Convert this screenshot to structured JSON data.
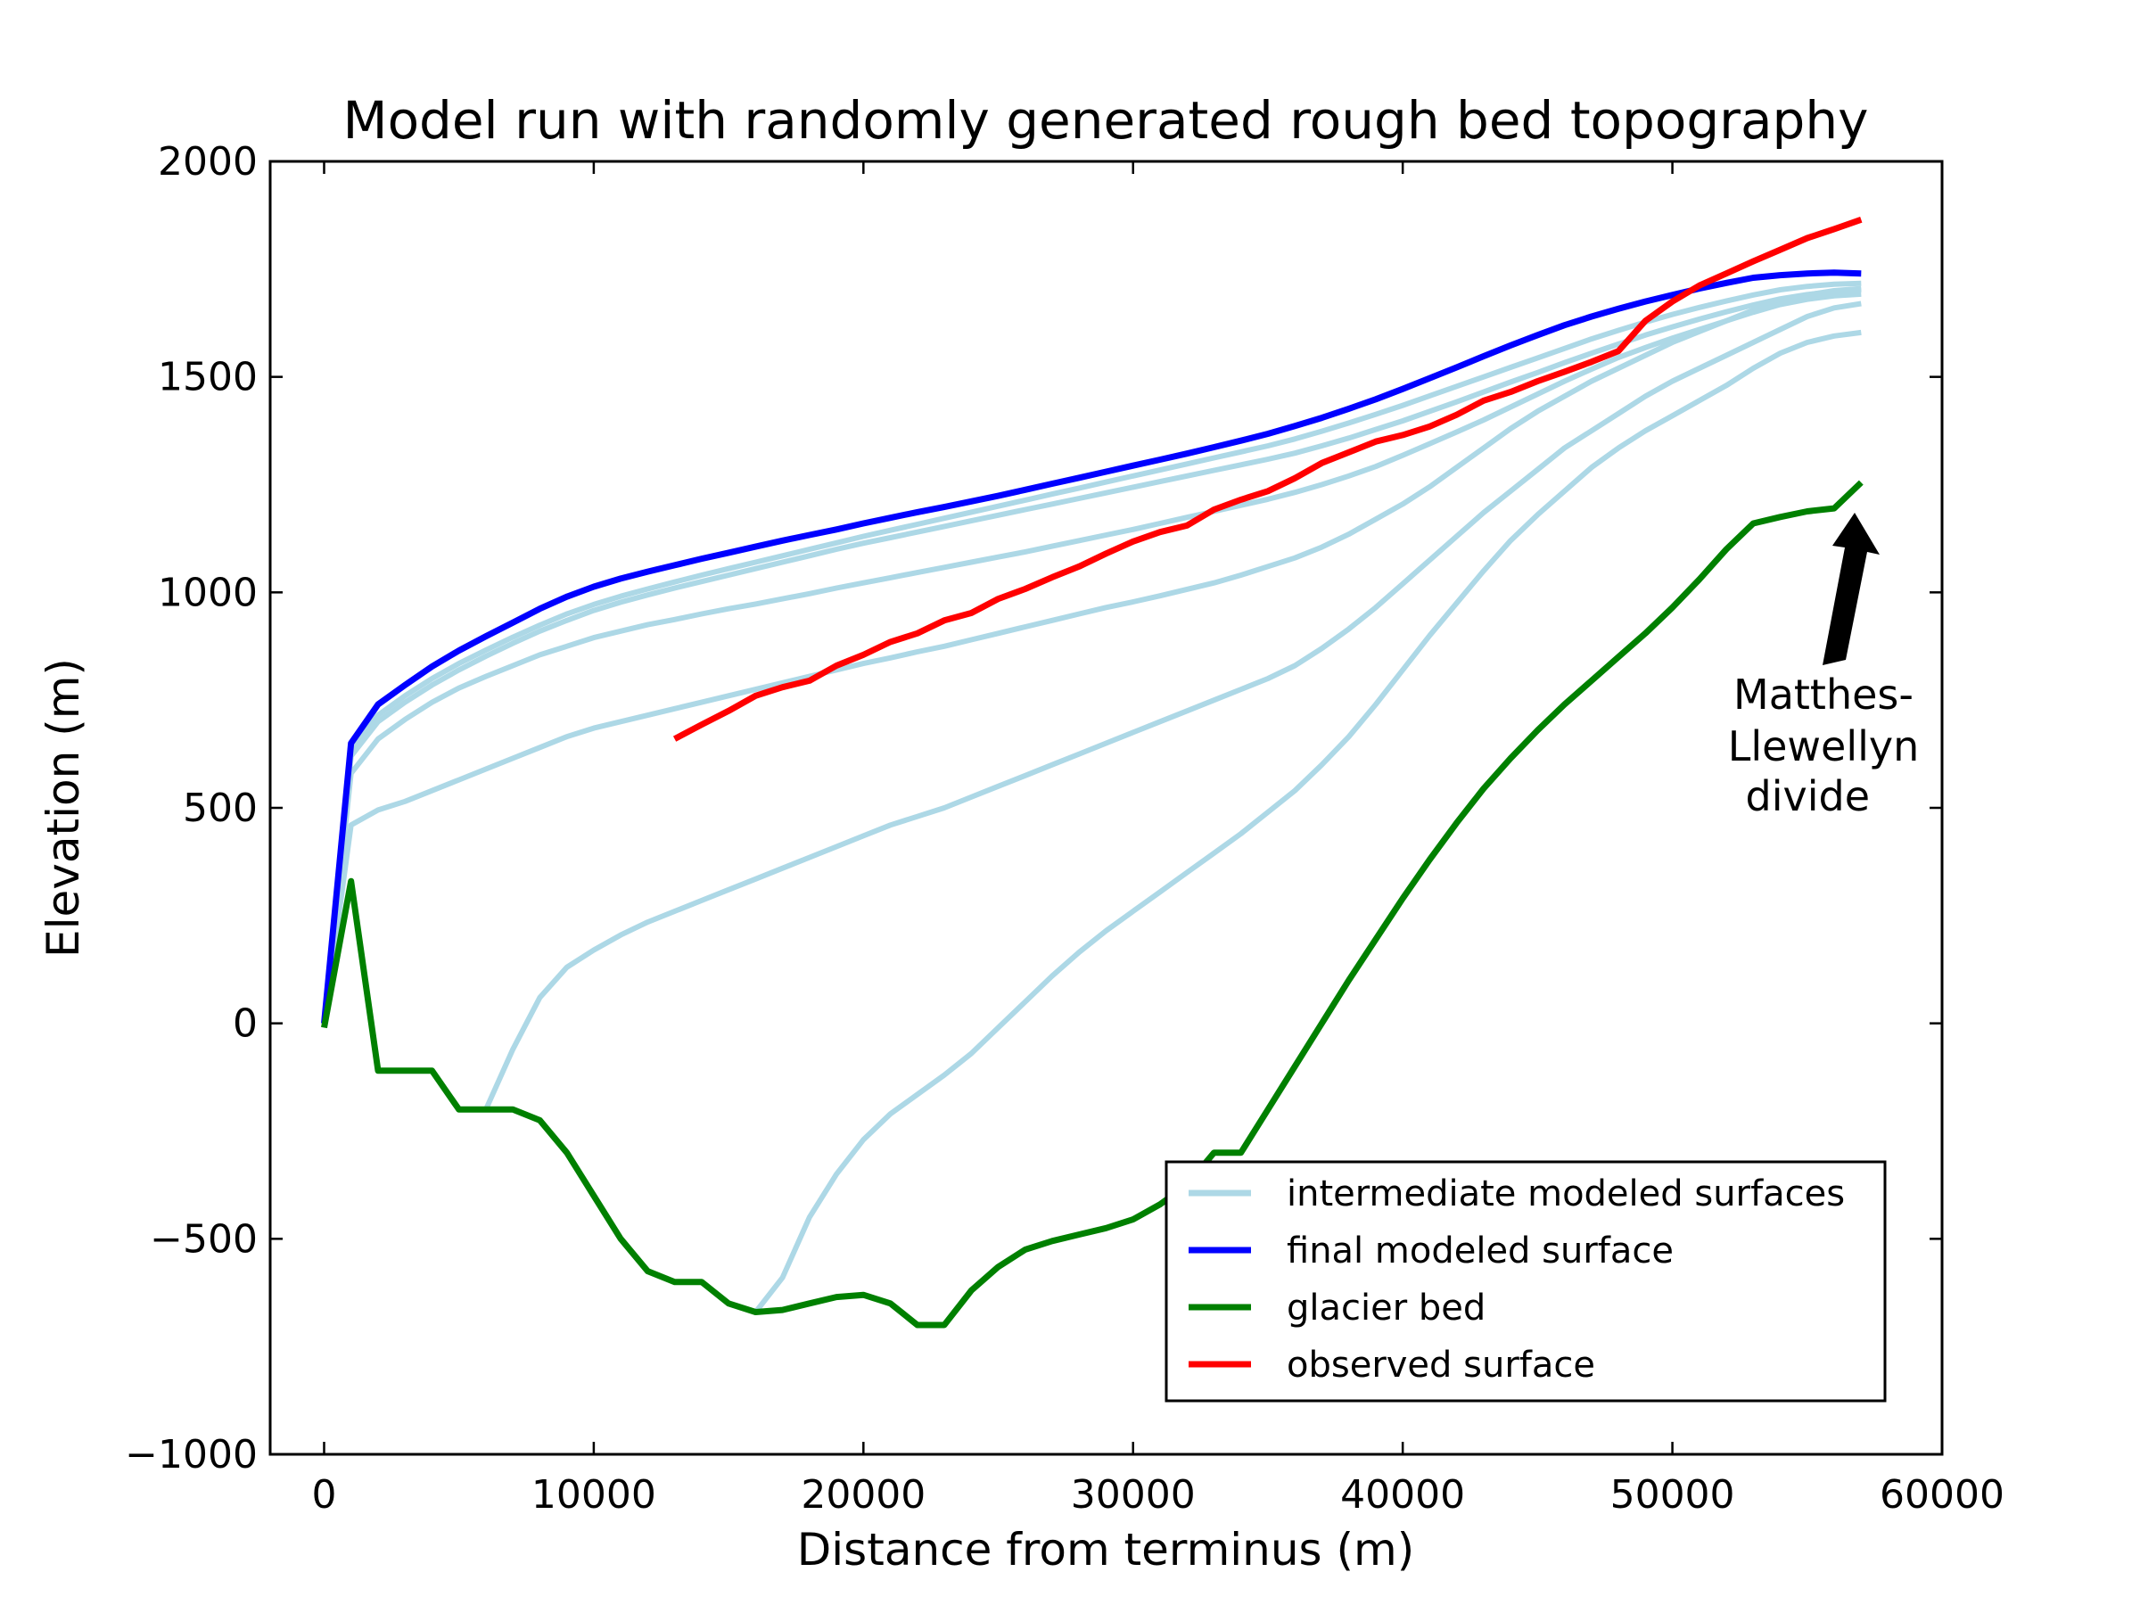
{
  "chart_data": {
    "type": "line",
    "title": "Model run with randomly generated rough bed topography",
    "xlabel": "Distance from terminus (m)",
    "ylabel": "Elevation (m)",
    "xlim": [
      -2000,
      60000
    ],
    "ylim": [
      -1000,
      2000
    ],
    "xticks": [
      0,
      10000,
      20000,
      30000,
      40000,
      50000,
      60000
    ],
    "yticks": [
      -1000,
      -500,
      0,
      500,
      1000,
      1500,
      2000
    ],
    "xtick_labels": [
      "0",
      "10000",
      "20000",
      "30000",
      "40000",
      "50000",
      "60000"
    ],
    "ytick_labels": [
      "−1000",
      "−500",
      "0",
      "500",
      "1000",
      "1500",
      "2000"
    ],
    "grid": false,
    "legend_position": "lower-right",
    "legend": [
      {
        "label": "intermediate modeled surfaces",
        "color": "#add8e6"
      },
      {
        "label": "final modeled surface",
        "color": "#0000ff"
      },
      {
        "label": "glacier bed",
        "color": "#008000"
      },
      {
        "label": "observed surface",
        "color": "#ff0000"
      }
    ],
    "annotation": {
      "lines": [
        "Matthes-",
        "Llewellyn",
        " divide"
      ],
      "points_to": [
        56800,
        1200
      ]
    },
    "series": [
      {
        "role": "intermediate",
        "color": "#add8e6",
        "x": [
          6000,
          7000,
          8000,
          9000,
          10000,
          11000,
          12000,
          13000,
          14000,
          15000,
          16000,
          17000,
          18000,
          19000,
          20000,
          21000,
          22000,
          23000,
          24000,
          25000,
          26000,
          27000,
          28000,
          29000,
          30000,
          31000,
          32000,
          33000,
          34000,
          35000,
          36000,
          37000,
          38000,
          39000,
          40000,
          41000,
          42000,
          43000,
          44000,
          45000,
          46000,
          47000,
          48000,
          49000,
          50000,
          51000,
          52000,
          53000,
          54000,
          55000,
          56000,
          57000
        ],
        "y": [
          -200,
          -60,
          60,
          130,
          170,
          205,
          235,
          260,
          285,
          310,
          335,
          360,
          385,
          410,
          435,
          460,
          480,
          500,
          525,
          550,
          575,
          600,
          625,
          650,
          675,
          700,
          725,
          750,
          775,
          800,
          830,
          870,
          915,
          965,
          1020,
          1075,
          1130,
          1185,
          1235,
          1285,
          1335,
          1375,
          1415,
          1455,
          1490,
          1520,
          1550,
          1580,
          1610,
          1640,
          1660,
          1670
        ]
      },
      {
        "role": "intermediate",
        "color": "#add8e6",
        "x": [
          16000,
          17000,
          18000,
          19000,
          20000,
          21000,
          22000,
          23000,
          24000,
          25000,
          26000,
          27000,
          28000,
          29000,
          30000,
          31000,
          32000,
          33000,
          34000,
          35000,
          36000,
          37000,
          38000,
          39000,
          40000,
          41000,
          42000,
          43000,
          44000,
          45000,
          46000,
          47000,
          48000,
          49000,
          50000,
          51000,
          52000,
          53000,
          54000,
          55000,
          56000,
          57000
        ],
        "y": [
          -670,
          -590,
          -450,
          -350,
          -270,
          -210,
          -165,
          -120,
          -70,
          -10,
          50,
          110,
          165,
          215,
          260,
          305,
          350,
          395,
          440,
          490,
          540,
          600,
          665,
          740,
          820,
          900,
          975,
          1050,
          1120,
          1180,
          1235,
          1290,
          1335,
          1375,
          1410,
          1445,
          1480,
          1520,
          1555,
          1580,
          1595,
          1603
        ]
      },
      {
        "role": "intermediate",
        "color": "#add8e6",
        "x": [
          0,
          1000,
          2000,
          3000,
          4000,
          5000,
          6000,
          7000,
          8000,
          9000,
          10000,
          11000,
          12000,
          13000,
          14000,
          15000,
          16000,
          17000,
          18000,
          19000,
          20000,
          21000,
          22000,
          23000,
          24000,
          25000,
          26000,
          27000,
          28000,
          29000,
          30000,
          31000,
          32000,
          33000,
          34000,
          35000,
          36000,
          37000,
          38000,
          39000,
          40000,
          41000,
          42000,
          43000,
          44000,
          45000,
          46000,
          47000,
          48000,
          49000,
          50000,
          51000,
          52000,
          53000,
          54000,
          55000,
          56000,
          57000
        ],
        "y": [
          0,
          460,
          495,
          515,
          540,
          565,
          590,
          615,
          640,
          665,
          685,
          700,
          715,
          730,
          745,
          760,
          775,
          790,
          805,
          820,
          835,
          848,
          862,
          875,
          890,
          905,
          920,
          935,
          950,
          965,
          978,
          992,
          1007,
          1022,
          1040,
          1060,
          1080,
          1105,
          1135,
          1170,
          1205,
          1245,
          1290,
          1335,
          1380,
          1420,
          1455,
          1490,
          1520,
          1550,
          1580,
          1605,
          1630,
          1655,
          1675,
          1690,
          1700,
          1705
        ]
      },
      {
        "role": "intermediate",
        "color": "#add8e6",
        "x": [
          0,
          1000,
          2000,
          3000,
          4000,
          5000,
          6000,
          7000,
          8000,
          9000,
          10000,
          11000,
          12000,
          13000,
          14000,
          15000,
          16000,
          17000,
          18000,
          19000,
          20000,
          21000,
          22000,
          23000,
          24000,
          25000,
          26000,
          27000,
          28000,
          29000,
          30000,
          31000,
          32000,
          33000,
          34000,
          35000,
          36000,
          37000,
          38000,
          39000,
          40000,
          41000,
          42000,
          43000,
          44000,
          45000,
          46000,
          47000,
          48000,
          49000,
          50000,
          51000,
          52000,
          53000,
          54000,
          55000,
          56000,
          57000
        ],
        "y": [
          0,
          580,
          660,
          705,
          745,
          778,
          805,
          830,
          855,
          875,
          895,
          910,
          925,
          937,
          950,
          962,
          973,
          985,
          997,
          1010,
          1022,
          1034,
          1046,
          1058,
          1070,
          1082,
          1094,
          1107,
          1120,
          1133,
          1146,
          1160,
          1174,
          1188,
          1202,
          1216,
          1232,
          1250,
          1270,
          1292,
          1318,
          1345,
          1372,
          1400,
          1430,
          1460,
          1490,
          1518,
          1545,
          1568,
          1590,
          1610,
          1630,
          1650,
          1668,
          1680,
          1688,
          1692
        ]
      },
      {
        "role": "intermediate",
        "color": "#add8e6",
        "x": [
          0,
          1000,
          2000,
          3000,
          4000,
          5000,
          6000,
          7000,
          8000,
          9000,
          10000,
          11000,
          12000,
          13000,
          14000,
          15000,
          16000,
          17000,
          18000,
          19000,
          20000,
          21000,
          22000,
          23000,
          24000,
          25000,
          26000,
          27000,
          28000,
          29000,
          30000,
          31000,
          32000,
          33000,
          34000,
          35000,
          36000,
          37000,
          38000,
          39000,
          40000,
          41000,
          42000,
          43000,
          44000,
          45000,
          46000,
          47000,
          48000,
          49000,
          50000,
          51000,
          52000,
          53000,
          54000,
          55000,
          56000,
          57000
        ],
        "y": [
          0,
          620,
          700,
          745,
          785,
          820,
          852,
          882,
          910,
          935,
          958,
          977,
          994,
          1010,
          1025,
          1040,
          1055,
          1070,
          1085,
          1100,
          1114,
          1127,
          1140,
          1153,
          1166,
          1179,
          1192,
          1205,
          1218,
          1231,
          1244,
          1257,
          1270,
          1283,
          1296,
          1309,
          1323,
          1340,
          1358,
          1378,
          1398,
          1420,
          1442,
          1465,
          1488,
          1510,
          1533,
          1555,
          1576,
          1597,
          1616,
          1634,
          1651,
          1667,
          1681,
          1691,
          1698,
          1702
        ]
      },
      {
        "role": "intermediate",
        "color": "#add8e6",
        "x": [
          0,
          1000,
          2000,
          3000,
          4000,
          5000,
          6000,
          7000,
          8000,
          9000,
          10000,
          11000,
          12000,
          13000,
          14000,
          15000,
          16000,
          17000,
          18000,
          19000,
          20000,
          21000,
          22000,
          23000,
          24000,
          25000,
          26000,
          27000,
          28000,
          29000,
          30000,
          31000,
          32000,
          33000,
          34000,
          35000,
          36000,
          37000,
          38000,
          39000,
          40000,
          41000,
          42000,
          43000,
          44000,
          45000,
          46000,
          47000,
          48000,
          49000,
          50000,
          51000,
          52000,
          53000,
          54000,
          55000,
          56000,
          57000
        ],
        "y": [
          0,
          635,
          715,
          760,
          800,
          835,
          866,
          896,
          924,
          950,
          972,
          991,
          1008,
          1024,
          1040,
          1055,
          1070,
          1085,
          1100,
          1115,
          1130,
          1144,
          1158,
          1172,
          1186,
          1200,
          1214,
          1228,
          1242,
          1256,
          1270,
          1284,
          1298,
          1312,
          1326,
          1340,
          1356,
          1374,
          1393,
          1413,
          1434,
          1456,
          1478,
          1500,
          1522,
          1544,
          1566,
          1588,
          1608,
          1627,
          1645,
          1661,
          1676,
          1690,
          1702,
          1710,
          1715,
          1717
        ]
      },
      {
        "role": "final",
        "color": "#0000ff",
        "x": [
          0,
          1000,
          2000,
          3000,
          4000,
          5000,
          6000,
          7000,
          8000,
          9000,
          10000,
          11000,
          12000,
          13000,
          14000,
          15000,
          16000,
          17000,
          18000,
          19000,
          20000,
          21000,
          22000,
          23000,
          24000,
          25000,
          26000,
          27000,
          28000,
          29000,
          30000,
          31000,
          32000,
          33000,
          34000,
          35000,
          36000,
          37000,
          38000,
          39000,
          40000,
          41000,
          42000,
          43000,
          44000,
          45000,
          46000,
          47000,
          48000,
          49000,
          50000,
          51000,
          52000,
          53000,
          54000,
          55000,
          56000,
          57000
        ],
        "y": [
          0,
          650,
          740,
          785,
          828,
          865,
          898,
          930,
          962,
          990,
          1013,
          1032,
          1048,
          1063,
          1078,
          1092,
          1106,
          1120,
          1133,
          1146,
          1160,
          1173,
          1186,
          1198,
          1211,
          1224,
          1238,
          1252,
          1266,
          1280,
          1294,
          1308,
          1322,
          1337,
          1352,
          1368,
          1386,
          1405,
          1426,
          1448,
          1472,
          1497,
          1522,
          1548,
          1573,
          1597,
          1620,
          1640,
          1658,
          1675,
          1690,
          1705,
          1718,
          1730,
          1736,
          1740,
          1742,
          1740
        ]
      },
      {
        "role": "bed",
        "color": "#008000",
        "x": [
          0,
          1000,
          2000,
          3000,
          4000,
          5000,
          6000,
          7000,
          8000,
          9000,
          10000,
          11000,
          12000,
          13000,
          14000,
          15000,
          16000,
          17000,
          18000,
          19000,
          20000,
          21000,
          22000,
          23000,
          24000,
          25000,
          26000,
          27000,
          28000,
          29000,
          30000,
          31000,
          32000,
          33000,
          34000,
          35000,
          36000,
          37000,
          38000,
          39000,
          40000,
          41000,
          42000,
          43000,
          44000,
          45000,
          46000,
          47000,
          48000,
          49000,
          50000,
          51000,
          52000,
          53000,
          54000,
          55000,
          56000,
          57000
        ],
        "y": [
          -10,
          330,
          -110,
          -110,
          -110,
          -200,
          -200,
          -200,
          -225,
          -300,
          -400,
          -500,
          -575,
          -600,
          -600,
          -650,
          -670,
          -665,
          -650,
          -635,
          -630,
          -650,
          -700,
          -700,
          -620,
          -565,
          -525,
          -505,
          -490,
          -475,
          -455,
          -420,
          -375,
          -300,
          -300,
          -200,
          -100,
          0,
          100,
          195,
          290,
          380,
          465,
          545,
          615,
          680,
          740,
          795,
          850,
          905,
          965,
          1030,
          1100,
          1160,
          1175,
          1188,
          1195,
          1255
        ]
      },
      {
        "role": "observed",
        "color": "#ff0000",
        "x": [
          13000,
          14000,
          15000,
          16000,
          17000,
          18000,
          19000,
          20000,
          21000,
          22000,
          23000,
          24000,
          25000,
          26000,
          27000,
          28000,
          29000,
          30000,
          31000,
          32000,
          33000,
          34000,
          35000,
          36000,
          37000,
          38000,
          39000,
          40000,
          41000,
          42000,
          43000,
          44000,
          45000,
          46000,
          47000,
          48000,
          49000,
          50000,
          51000,
          52000,
          53000,
          54000,
          55000,
          56000,
          57000
        ],
        "y": [
          660,
          693,
          725,
          760,
          780,
          795,
          830,
          855,
          885,
          905,
          935,
          952,
          985,
          1008,
          1035,
          1060,
          1090,
          1118,
          1140,
          1155,
          1192,
          1215,
          1235,
          1265,
          1300,
          1325,
          1350,
          1365,
          1385,
          1412,
          1445,
          1465,
          1490,
          1512,
          1535,
          1560,
          1630,
          1675,
          1712,
          1740,
          1768,
          1795,
          1822,
          1843,
          1865
        ]
      }
    ]
  }
}
